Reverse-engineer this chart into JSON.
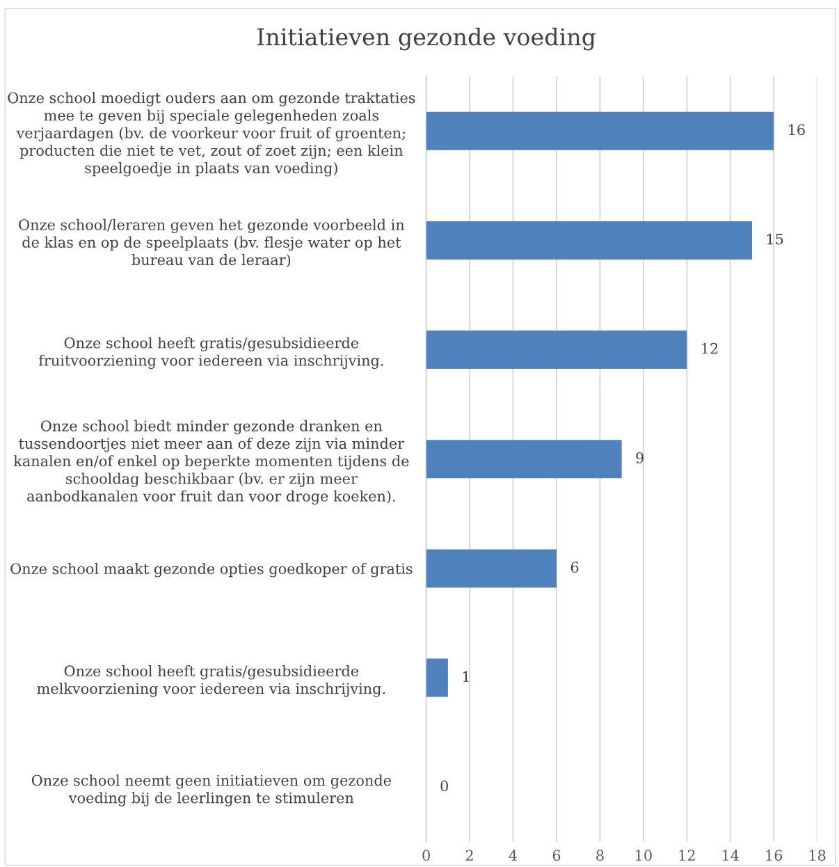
{
  "chart_data": {
    "type": "bar",
    "orientation": "horizontal",
    "title": "Initiatieven gezonde voeding",
    "categories": [
      "Onze school moedigt ouders aan om gezonde traktaties\nmee te geven bij speciale gelegenheden zoals\nverjaardagen (bv. de voorkeur voor fruit of groenten;\nproducten die niet te vet, zout of zoet zijn; een klein\nspeelgoedje in plaats van voeding)",
      "Onze school/leraren geven het gezonde voorbeeld in\nde klas en op de speelplaats (bv. flesje water op het\nbureau van de leraar)",
      "Onze school heeft gratis/gesubsidieerde\nfruitvoorziening voor iedereen via inschrijving.",
      "Onze school biedt minder gezonde dranken en\ntussendoortjes niet meer aan of deze zijn via minder\nkanalen en/of enkel op beperkte momenten tijdens de\nschooldag beschikbaar (bv. er zijn meer\naanbodkanalen voor fruit dan voor droge koeken).",
      "Onze school maakt gezonde opties goedkoper of gratis",
      "Onze school heeft gratis/gesubsidieerde\nmelkvoorziening voor iedereen via inschrijving.",
      "Onze school neemt geen initiatieven om gezonde\nvoeding bij de leerlingen te stimuleren"
    ],
    "values": [
      16,
      15,
      12,
      9,
      6,
      1,
      0
    ],
    "color": "#4f81bd",
    "xlim": [
      0,
      18
    ],
    "xticks": [
      0,
      2,
      4,
      6,
      8,
      10,
      12,
      14,
      16,
      18
    ],
    "grid": "x",
    "data_labels": true
  }
}
